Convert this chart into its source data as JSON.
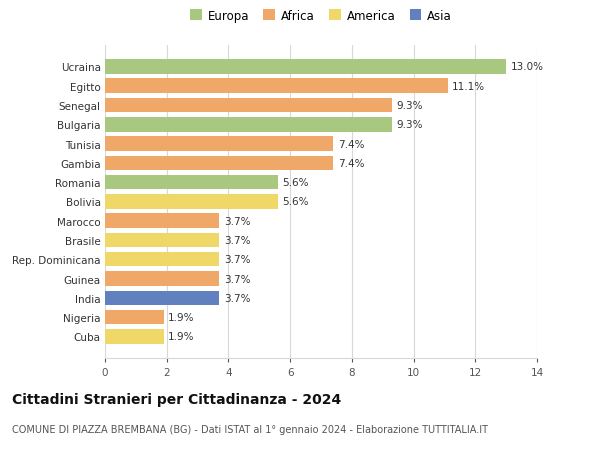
{
  "countries": [
    "Cuba",
    "Nigeria",
    "India",
    "Guinea",
    "Rep. Dominicana",
    "Brasile",
    "Marocco",
    "Bolivia",
    "Romania",
    "Gambia",
    "Tunisia",
    "Bulgaria",
    "Senegal",
    "Egitto",
    "Ucraina"
  ],
  "values": [
    1.9,
    1.9,
    3.7,
    3.7,
    3.7,
    3.7,
    3.7,
    5.6,
    5.6,
    7.4,
    7.4,
    9.3,
    9.3,
    11.1,
    13.0
  ],
  "continents": [
    "America",
    "Africa",
    "Asia",
    "Africa",
    "America",
    "America",
    "Africa",
    "America",
    "Europa",
    "Africa",
    "Africa",
    "Europa",
    "Africa",
    "Africa",
    "Europa"
  ],
  "colors": {
    "Europa": "#a8c880",
    "Africa": "#f0a868",
    "America": "#f0d868",
    "Asia": "#6080c0"
  },
  "legend_order": [
    "Europa",
    "Africa",
    "America",
    "Asia"
  ],
  "title": "Cittadini Stranieri per Cittadinanza - 2024",
  "subtitle": "COMUNE DI PIAZZA BREMBANA (BG) - Dati ISTAT al 1° gennaio 2024 - Elaborazione TUTTITALIA.IT",
  "xlim": [
    0,
    14
  ],
  "xticks": [
    0,
    2,
    4,
    6,
    8,
    10,
    12,
    14
  ],
  "background_color": "#ffffff",
  "grid_color": "#d8d8d8",
  "bar_height": 0.75,
  "label_fontsize": 7.5,
  "title_fontsize": 10,
  "subtitle_fontsize": 7,
  "legend_fontsize": 8.5,
  "tick_fontsize": 7.5,
  "ylabel_fontsize": 7.5
}
